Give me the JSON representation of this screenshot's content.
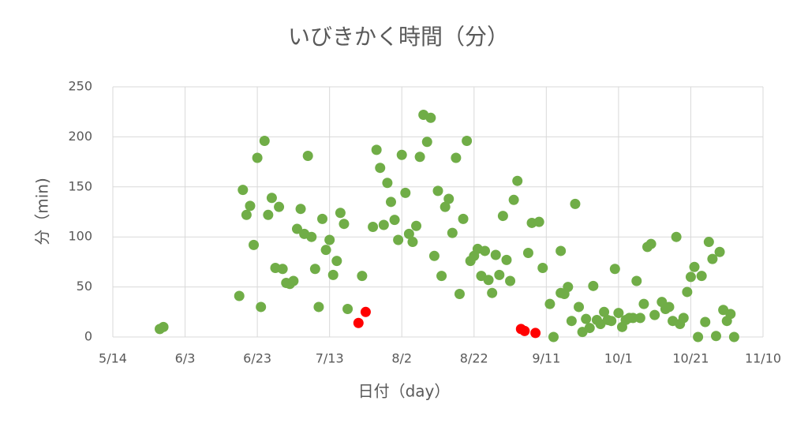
{
  "chart_data": {
    "type": "scatter",
    "title": "いびきかく時間（分）",
    "x_label": "日付（day）",
    "y_label": "分（min)",
    "xlim": [
      "5/14",
      "11/10"
    ],
    "xticks": [
      "5/14",
      "6/3",
      "6/23",
      "7/13",
      "8/2",
      "8/22",
      "9/11",
      "10/1",
      "10/21",
      "11/10"
    ],
    "ylim": [
      0,
      250
    ],
    "yticks": [
      0,
      50,
      100,
      150,
      200,
      250
    ],
    "grid": true,
    "series": [
      {
        "color": "#70ad47",
        "x": [
          "5/27",
          "5/28",
          "6/18",
          "6/19",
          "6/20",
          "6/21",
          "6/22",
          "6/23",
          "6/24",
          "6/25",
          "6/26",
          "6/27",
          "6/28",
          "6/29",
          "6/30",
          "7/1",
          "7/2",
          "7/3",
          "7/4",
          "7/5",
          "7/6",
          "7/7",
          "7/8",
          "7/9",
          "7/10",
          "7/11",
          "7/12",
          "7/13",
          "7/14",
          "7/15",
          "7/16",
          "7/17",
          "7/18",
          "7/22",
          "7/25",
          "7/26",
          "7/27",
          "7/28",
          "7/29",
          "7/30",
          "7/31",
          "8/1",
          "8/2",
          "8/3",
          "8/4",
          "8/5",
          "8/6",
          "8/7",
          "8/8",
          "8/9",
          "8/10",
          "8/11",
          "8/12",
          "8/13",
          "8/14",
          "8/15",
          "8/16",
          "8/17",
          "8/18",
          "8/19",
          "8/20",
          "8/21",
          "8/22",
          "8/23",
          "8/24",
          "8/25",
          "8/26",
          "8/27",
          "8/28",
          "8/29",
          "8/30",
          "8/31",
          "9/1",
          "9/2",
          "9/3",
          "9/6",
          "9/7",
          "9/9",
          "9/10",
          "9/12",
          "9/13",
          "9/15",
          "9/15",
          "9/16",
          "9/17",
          "9/18",
          "9/19",
          "9/20",
          "9/21",
          "9/22",
          "9/23",
          "9/24",
          "9/25",
          "9/26",
          "9/27",
          "9/28",
          "9/29",
          "9/30",
          "10/1",
          "10/2",
          "10/3",
          "10/4",
          "10/5",
          "10/6",
          "10/7",
          "10/8",
          "10/9",
          "10/10",
          "10/11",
          "10/13",
          "10/14",
          "10/15",
          "10/16",
          "10/17",
          "10/18",
          "10/19",
          "10/20",
          "10/21",
          "10/22",
          "10/23",
          "10/24",
          "10/25",
          "10/26",
          "10/27",
          "10/28",
          "10/29",
          "10/30",
          "10/31",
          "11/1",
          "11/2"
        ],
        "values": [
          8,
          10,
          41,
          147,
          122,
          131,
          92,
          179,
          30,
          196,
          122,
          139,
          69,
          130,
          68,
          54,
          53,
          56,
          108,
          128,
          103,
          181,
          100,
          68,
          30,
          118,
          87,
          97,
          62,
          76,
          124,
          113,
          28,
          61,
          110,
          187,
          169,
          112,
          154,
          135,
          117,
          97,
          182,
          144,
          103,
          95,
          111,
          180,
          222,
          195,
          219,
          81,
          146,
          61,
          130,
          138,
          104,
          179,
          43,
          118,
          196,
          76,
          81,
          88,
          61,
          86,
          57,
          44,
          82,
          62,
          121,
          77,
          56,
          137,
          156,
          84,
          114,
          115,
          69,
          33,
          0,
          86,
          44,
          43,
          50,
          16,
          133,
          30,
          5,
          18,
          9,
          51,
          17,
          13,
          25,
          17,
          16,
          68,
          24,
          10,
          17,
          19,
          19,
          56,
          19,
          33,
          90,
          93,
          22,
          35,
          28,
          30,
          16,
          100,
          13,
          19,
          45,
          60,
          70,
          0,
          61,
          15,
          95,
          78,
          1,
          85,
          27,
          16,
          23,
          0
        ]
      },
      {
        "color": "#ff0000",
        "x": [
          "7/21",
          "7/23",
          "9/4",
          "9/5",
          "9/8"
        ],
        "values": [
          14,
          25,
          8,
          6,
          4
        ]
      }
    ]
  }
}
